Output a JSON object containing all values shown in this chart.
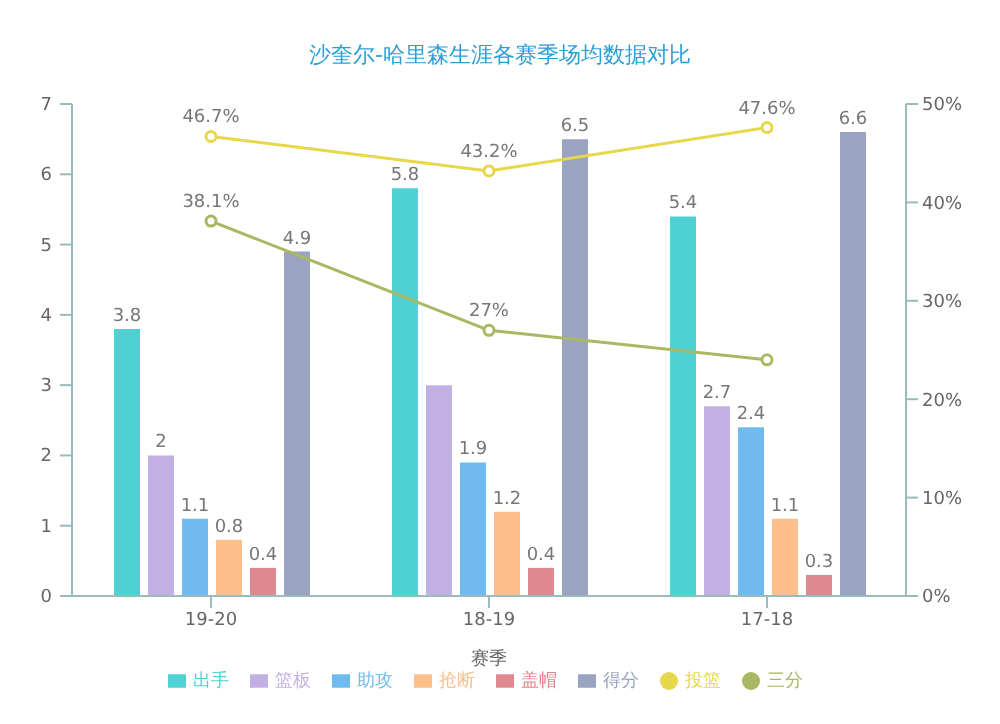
{
  "chart_data": {
    "type": "bar",
    "title": "沙奎尔-哈里森生涯各赛季场均数据对比",
    "xlabel": "赛季",
    "categories": [
      "19-20",
      "18-19",
      "17-18"
    ],
    "series": [
      {
        "name": "出手",
        "color": "#4fd1d3",
        "values": [
          3.8,
          5.8,
          5.4
        ],
        "value_labels": [
          "3.8",
          "5.8",
          "5.4"
        ]
      },
      {
        "name": "篮板",
        "color": "#c3b0e3",
        "values": [
          2,
          3,
          2.7
        ],
        "value_labels": [
          "2",
          null,
          "2.7"
        ]
      },
      {
        "name": "助攻",
        "color": "#6fbbf0",
        "values": [
          1.1,
          1.9,
          2.4
        ],
        "value_labels": [
          "1.1",
          "1.9",
          "2.4"
        ]
      },
      {
        "name": "抢断",
        "color": "#fdc08c",
        "values": [
          0.8,
          1.2,
          1.1
        ],
        "value_labels": [
          "0.8",
          "1.2",
          "1.1"
        ]
      },
      {
        "name": "盖帽",
        "color": "#e08890",
        "values": [
          0.4,
          0.4,
          0.3
        ],
        "value_labels": [
          "0.4",
          "0.4",
          "0.3"
        ]
      },
      {
        "name": "得分",
        "color": "#9aa3bf",
        "values": [
          4.9,
          6.5,
          6.6
        ],
        "value_labels": [
          "4.9",
          "6.5",
          "6.6"
        ]
      },
      {
        "name": "投篮",
        "type": "line",
        "axis": "y2",
        "color": "#e6d84a",
        "values": [
          46.7,
          43.2,
          47.6
        ],
        "value_labels": [
          "46.7%",
          "43.2%",
          "47.6%"
        ]
      },
      {
        "name": "三分",
        "type": "line",
        "axis": "y2",
        "color": "#a9b862",
        "values": [
          38.1,
          27,
          24
        ],
        "value_labels": [
          "38.1%",
          "27%",
          null
        ]
      }
    ],
    "ylim": [
      0,
      7
    ],
    "yticks": [
      0,
      1,
      2,
      3,
      4,
      5,
      6,
      7
    ],
    "y2lim": [
      0,
      50
    ],
    "y2ticks": [
      {
        "value": 0,
        "label": "0%"
      },
      {
        "value": 10,
        "label": "10%"
      },
      {
        "value": 20,
        "label": "20%"
      },
      {
        "value": 30,
        "label": "30%"
      },
      {
        "value": 40,
        "label": "40%"
      },
      {
        "value": 50,
        "label": "50%"
      }
    ],
    "legend": "bottom",
    "marker": "circle",
    "grid": false
  }
}
